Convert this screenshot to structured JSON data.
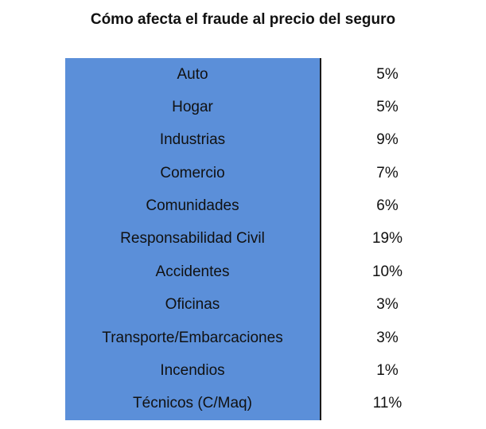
{
  "chart_data": {
    "type": "table",
    "title": "Cómo afecta el fraude al precio del seguro",
    "rows": [
      {
        "category": "Auto",
        "value": "5%"
      },
      {
        "category": "Hogar",
        "value": "5%"
      },
      {
        "category": "Industrias",
        "value": "9%"
      },
      {
        "category": "Comercio",
        "value": "7%"
      },
      {
        "category": "Comunidades",
        "value": "6%"
      },
      {
        "category": "Responsabilidad Civil",
        "value": "19%"
      },
      {
        "category": "Accidentes",
        "value": "10%"
      },
      {
        "category": "Oficinas",
        "value": "3%"
      },
      {
        "category": "Transporte/Embarcaciones",
        "value": "3%"
      },
      {
        "category": "Incendios",
        "value": "1%"
      },
      {
        "category": "Técnicos (C/Maq)",
        "value": "11%"
      }
    ]
  },
  "colors": {
    "category_column_bg": "#5b8fd9",
    "divider": "#1a1a1a",
    "text": "#111111"
  }
}
